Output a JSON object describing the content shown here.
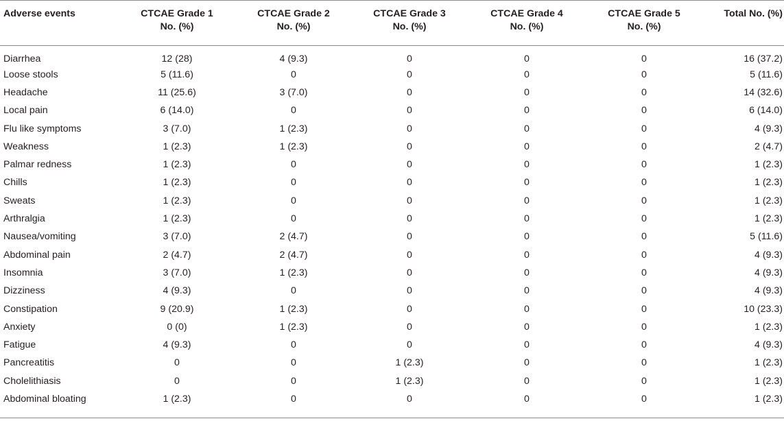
{
  "table": {
    "headers": [
      [
        "Adverse events"
      ],
      [
        "CTCAE Grade 1",
        "No. (%)"
      ],
      [
        "CTCAE Grade 2",
        "No. (%)"
      ],
      [
        "CTCAE Grade 3",
        "No. (%)"
      ],
      [
        "CTCAE Grade 4",
        "No. (%)"
      ],
      [
        "CTCAE Grade 5",
        "No. (%)"
      ],
      [
        "Total No. (%)"
      ]
    ],
    "rows": [
      [
        "Diarrhea",
        "12 (28)",
        "4 (9.3)",
        "0",
        "0",
        "0",
        "16 (37.2)"
      ],
      [
        "Loose stools",
        "5 (11.6)",
        "0",
        "0",
        "0",
        "0",
        "5 (11.6)"
      ],
      [
        "Headache",
        "11 (25.6)",
        "3 (7.0)",
        "0",
        "0",
        "0",
        "14 (32.6)"
      ],
      [
        "Local pain",
        "6 (14.0)",
        "0",
        "0",
        "0",
        "0",
        "6 (14.0)"
      ],
      [
        "Flu like symptoms",
        "3 (7.0)",
        "1 (2.3)",
        "0",
        "0",
        "0",
        "4 (9.3)"
      ],
      [
        "Weakness",
        "1 (2.3)",
        "1 (2.3)",
        "0",
        "0",
        "0",
        "2 (4.7)"
      ],
      [
        "Palmar redness",
        "1 (2.3)",
        "0",
        "0",
        "0",
        "0",
        "1 (2.3)"
      ],
      [
        "Chills",
        "1 (2.3)",
        "0",
        "0",
        "0",
        "0",
        "1 (2.3)"
      ],
      [
        "Sweats",
        "1 (2.3)",
        "0",
        "0",
        "0",
        "0",
        "1 (2.3)"
      ],
      [
        "Arthralgia",
        "1 (2.3)",
        "0",
        "0",
        "0",
        "0",
        "1 (2.3)"
      ],
      [
        "Nausea/vomiting",
        "3 (7.0)",
        "2 (4.7)",
        "0",
        "0",
        "0",
        "5 (11.6)"
      ],
      [
        "Abdominal pain",
        "2 (4.7)",
        "2 (4.7)",
        "0",
        "0",
        "0",
        "4 (9.3)"
      ],
      [
        "Insomnia",
        "3 (7.0)",
        "1 (2.3)",
        "0",
        "0",
        "0",
        "4 (9.3)"
      ],
      [
        "Dizziness",
        "4 (9.3)",
        "0",
        "0",
        "0",
        "0",
        "4 (9.3)"
      ],
      [
        "Constipation",
        "9 (20.9)",
        "1 (2.3)",
        "0",
        "0",
        "0",
        "10 (23.3)"
      ],
      [
        "Anxiety",
        "0 (0)",
        "1 (2.3)",
        "0",
        "0",
        "0",
        "1 (2.3)"
      ],
      [
        "Fatigue",
        "4 (9.3)",
        "0",
        "0",
        "0",
        "0",
        "4 (9.3)"
      ],
      [
        "Pancreatitis",
        "0",
        "0",
        "1 (2.3)",
        "0",
        "0",
        "1 (2.3)"
      ],
      [
        "Cholelithiasis",
        "0",
        "0",
        "1 (2.3)",
        "0",
        "0",
        "1 (2.3)"
      ],
      [
        "Abdominal bloating",
        "1 (2.3)",
        "0",
        "0",
        "0",
        "0",
        "1 (2.3)"
      ]
    ]
  },
  "colors": {
    "text": "#231f20",
    "rule": "#8a8a8a"
  }
}
